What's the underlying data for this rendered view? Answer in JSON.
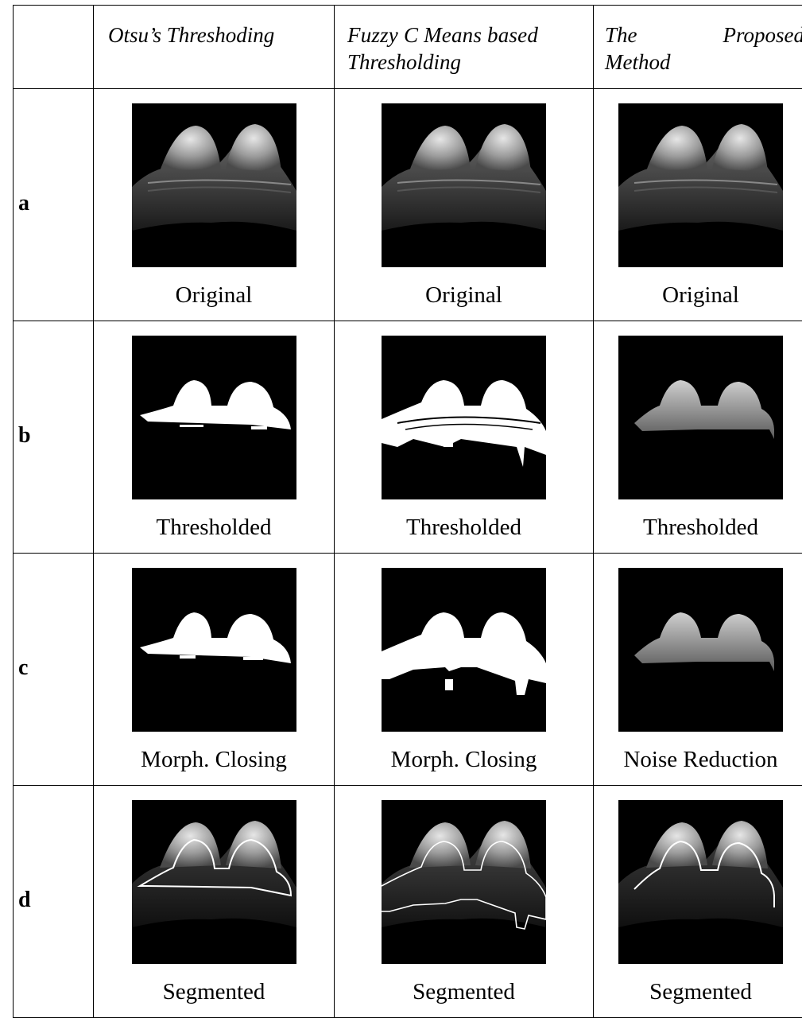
{
  "header": {
    "col1": "Otsu’s Threshoding",
    "col2_line1": "Fuzzy C Means based",
    "col2_line2": "Thresholding",
    "col3_w1": "The",
    "col3_w2": "Proposed",
    "col3_line2": "Method"
  },
  "rows": [
    {
      "label": "a",
      "captions": [
        "Original",
        "Original",
        "Original"
      ]
    },
    {
      "label": "b",
      "captions": [
        "Thresholded",
        "Thresholded",
        "Thresholded"
      ]
    },
    {
      "label": "c",
      "captions": [
        "Morph. Closing",
        "Morph. Closing",
        "Noise Reduction"
      ]
    },
    {
      "label": "d",
      "captions": [
        "Segmented",
        "Segmented",
        "Segmented"
      ]
    }
  ],
  "image_kinds": [
    [
      "mri-original",
      "mri-original",
      "mri-original"
    ],
    [
      "binary-otsu",
      "binary-fcm",
      "masked-gray"
    ],
    [
      "binary-otsu-closed",
      "binary-fcm-closed",
      "masked-gray"
    ],
    [
      "contour-otsu",
      "contour-fcm",
      "contour-proposed"
    ]
  ]
}
